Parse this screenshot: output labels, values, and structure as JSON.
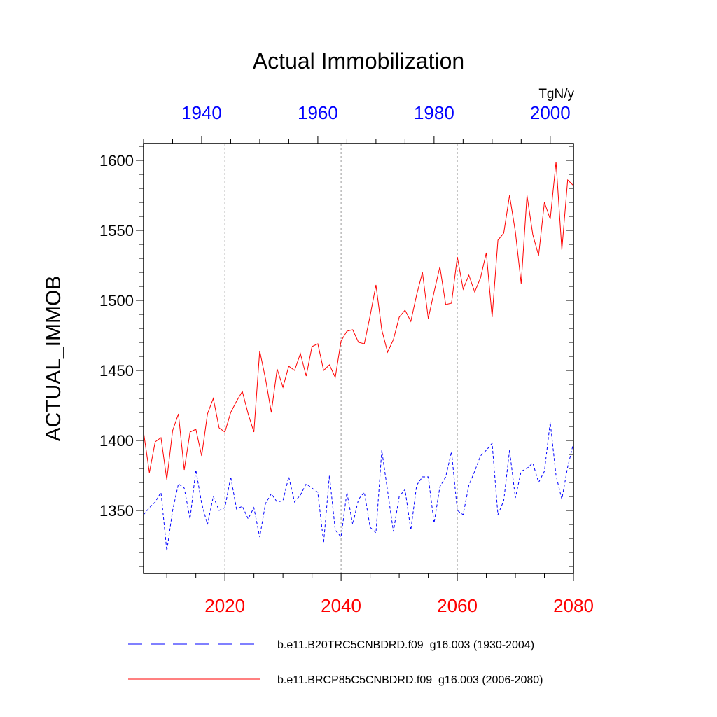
{
  "chart_data": {
    "type": "line",
    "title": "Actual Immobilization",
    "ylabel": "ACTUAL_IMMOB",
    "units": "TgN/y",
    "ylim": [
      1305,
      1612
    ],
    "yticks": [
      1350,
      1400,
      1450,
      1500,
      1550,
      1600
    ],
    "bottom_axis": {
      "xlim": [
        2006,
        2080
      ],
      "ticks": [
        2020,
        2040,
        2060,
        2080
      ],
      "color": "#ff0000"
    },
    "top_axis": {
      "xlim": [
        1930,
        2004
      ],
      "ticks": [
        1940,
        1960,
        1980,
        2000
      ],
      "color": "#0000ff"
    },
    "grid_x": [
      2020,
      2040,
      2060
    ],
    "series": [
      {
        "name": "b.e11.B20TRC5CNBDRD.f09_g16.003 (1930-2004)",
        "color": "#0000ff",
        "style": "dashed",
        "axis": "top",
        "x_start": 1930,
        "values": [
          1347,
          1352,
          1356,
          1363,
          1321,
          1350,
          1369,
          1366,
          1344,
          1379,
          1355,
          1340,
          1360,
          1350,
          1352,
          1374,
          1351,
          1353,
          1344,
          1352,
          1331,
          1355,
          1362,
          1356,
          1357,
          1374,
          1356,
          1361,
          1369,
          1366,
          1363,
          1327,
          1375,
          1336,
          1331,
          1363,
          1340,
          1358,
          1363,
          1338,
          1334,
          1393,
          1364,
          1335,
          1360,
          1365,
          1336,
          1368,
          1374,
          1374,
          1341,
          1367,
          1374,
          1392,
          1350,
          1347,
          1368,
          1378,
          1389,
          1393,
          1398,
          1347,
          1357,
          1393,
          1359,
          1378,
          1380,
          1384,
          1370,
          1378,
          1413,
          1375,
          1358,
          1381,
          1398
        ]
      },
      {
        "name": "b.e11.BRCP85C5CNBDRD.f09_g16.003 (2006-2080)",
        "color": "#ff0000",
        "style": "solid",
        "axis": "bottom",
        "x_start": 2006,
        "values": [
          1406,
          1377,
          1399,
          1402,
          1372,
          1407,
          1419,
          1379,
          1406,
          1408,
          1389,
          1419,
          1430,
          1409,
          1406,
          1420,
          1428,
          1435,
          1419,
          1406,
          1464,
          1444,
          1420,
          1451,
          1438,
          1453,
          1450,
          1462,
          1446,
          1467,
          1469,
          1450,
          1454,
          1445,
          1471,
          1478,
          1479,
          1470,
          1469,
          1489,
          1511,
          1479,
          1463,
          1472,
          1488,
          1493,
          1485,
          1504,
          1520,
          1487,
          1506,
          1524,
          1497,
          1498,
          1531,
          1508,
          1518,
          1506,
          1516,
          1534,
          1488,
          1543,
          1548,
          1575,
          1549,
          1512,
          1575,
          1547,
          1532,
          1570,
          1558,
          1599,
          1536,
          1586,
          1582
        ]
      }
    ]
  }
}
